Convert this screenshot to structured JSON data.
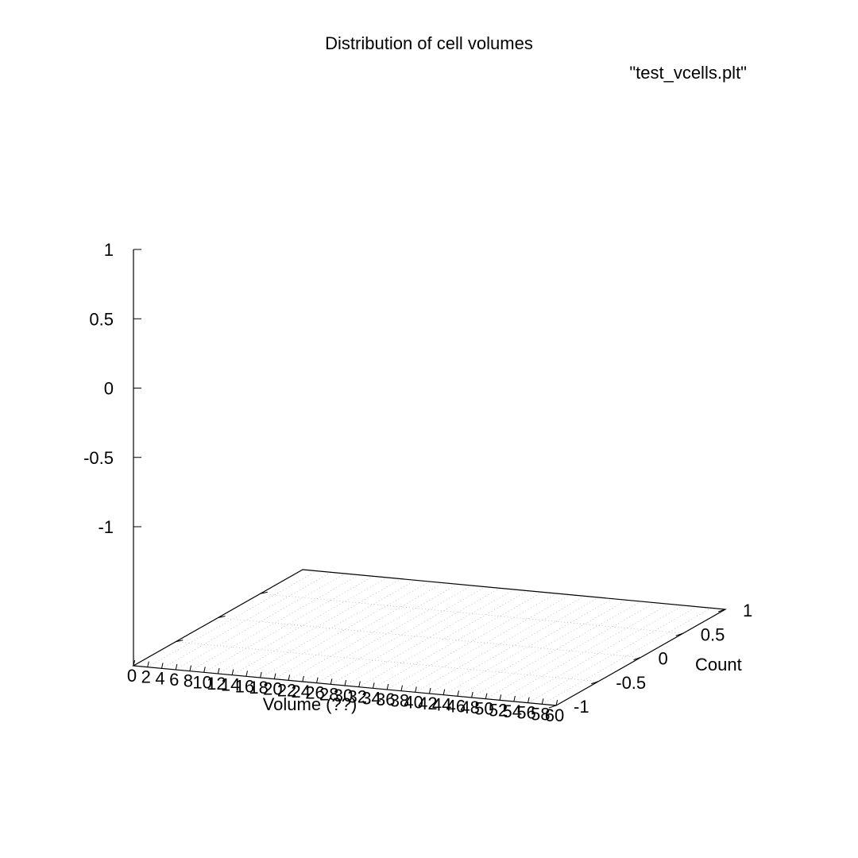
{
  "chart_data": {
    "type": "scatter",
    "title": "Distribution of cell volumes",
    "legend": {
      "entry": "\"test_vcells.plt\"",
      "placement": "top-right"
    },
    "xlabel": "Volume (??)",
    "ylabel": "Count",
    "zlabel": "",
    "x_ticks": [
      0,
      2,
      4,
      6,
      8,
      10,
      12,
      14,
      16,
      18,
      20,
      22,
      24,
      26,
      28,
      30,
      32,
      34,
      36,
      38,
      40,
      42,
      44,
      46,
      48,
      50,
      52,
      54,
      56,
      58,
      60
    ],
    "y_ticks": [
      -1,
      -0.5,
      0,
      0.5,
      1
    ],
    "z_ticks": [
      -1,
      -0.5,
      0,
      0.5,
      1
    ],
    "xlim": [
      0,
      60
    ],
    "ylim": [
      -1,
      1
    ],
    "zlim": [
      -1,
      1
    ],
    "grid": true,
    "series": [
      {
        "name": "\"test_vcells.plt\"",
        "points": []
      }
    ]
  }
}
